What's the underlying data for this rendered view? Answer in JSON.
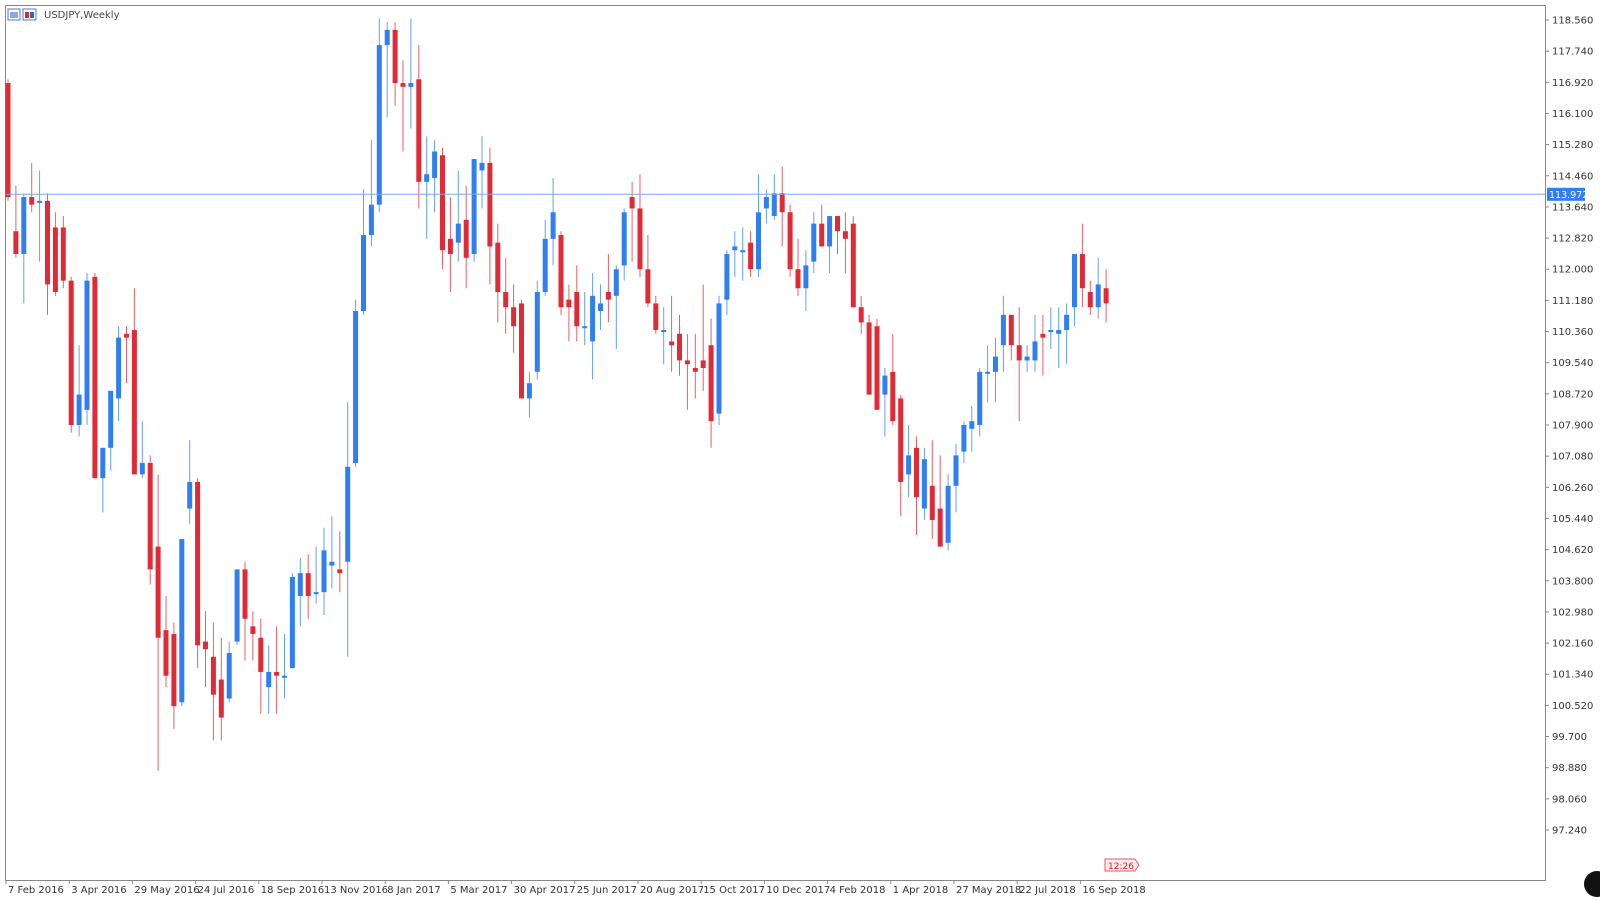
{
  "chart_title": "USDJPY,Weekly",
  "current_price_label": "113.972",
  "timer_label": "12:26",
  "colors": {
    "bull": "#2f7ff0",
    "bear": "#e02a36",
    "grid_frame": "#888888",
    "price_line": "#7ea8ee",
    "price_tag": "#2f7ff0"
  },
  "chart_data": {
    "type": "candlestick",
    "title": "USDJPY,Weekly",
    "xlabel": "",
    "ylabel": "",
    "ylim": [
      96.8,
      118.9
    ],
    "grid": false,
    "last_price": 113.972,
    "y_ticks": [
      "118.560",
      "117.740",
      "116.920",
      "116.100",
      "115.280",
      "114.460",
      "113.640",
      "112.820",
      "112.000",
      "111.180",
      "110.360",
      "109.540",
      "108.720",
      "107.900",
      "107.080",
      "106.260",
      "105.440",
      "104.620",
      "103.800",
      "102.980",
      "102.160",
      "101.340",
      "100.520",
      "99.700",
      "98.880",
      "98.060",
      "97.240"
    ],
    "x_ticks": [
      {
        "label": "7 Feb 2016",
        "index": 0
      },
      {
        "label": "3 Apr 2016",
        "index": 8
      },
      {
        "label": "29 May 2016",
        "index": 16
      },
      {
        "label": "24 Jul 2016",
        "index": 24
      },
      {
        "label": "18 Sep 2016",
        "index": 32
      },
      {
        "label": "13 Nov 2016",
        "index": 40
      },
      {
        "label": "8 Jan 2017",
        "index": 48
      },
      {
        "label": "5 Mar 2017",
        "index": 56
      },
      {
        "label": "30 Apr 2017",
        "index": 64
      },
      {
        "label": "25 Jun 2017",
        "index": 72
      },
      {
        "label": "20 Aug 2017",
        "index": 80
      },
      {
        "label": "15 Oct 2017",
        "index": 88
      },
      {
        "label": "10 Dec 2017",
        "index": 96
      },
      {
        "label": "4 Feb 2018",
        "index": 104
      },
      {
        "label": "1 Apr 2018",
        "index": 112
      },
      {
        "label": "27 May 2018",
        "index": 120
      },
      {
        "label": "22 Jul 2018",
        "index": 128
      },
      {
        "label": "16 Sep 2018",
        "index": 136
      }
    ],
    "candles": [
      {
        "o": 116.9,
        "h": 117.0,
        "l": 113.8,
        "c": 113.9
      },
      {
        "o": 113.0,
        "h": 114.2,
        "l": 112.3,
        "c": 112.4
      },
      {
        "o": 112.4,
        "h": 114.0,
        "l": 111.1,
        "c": 113.9
      },
      {
        "o": 113.9,
        "h": 114.8,
        "l": 113.5,
        "c": 113.7
      },
      {
        "o": 113.8,
        "h": 114.6,
        "l": 112.2,
        "c": 113.8
      },
      {
        "o": 113.8,
        "h": 114.0,
        "l": 110.8,
        "c": 111.6
      },
      {
        "o": 113.1,
        "h": 113.5,
        "l": 111.3,
        "c": 111.4
      },
      {
        "o": 113.1,
        "h": 113.4,
        "l": 111.5,
        "c": 111.7
      },
      {
        "o": 111.7,
        "h": 111.8,
        "l": 107.7,
        "c": 107.9
      },
      {
        "o": 107.9,
        "h": 110.0,
        "l": 107.6,
        "c": 108.7
      },
      {
        "o": 108.3,
        "h": 111.9,
        "l": 107.9,
        "c": 111.7
      },
      {
        "o": 111.8,
        "h": 111.9,
        "l": 106.5,
        "c": 106.5
      },
      {
        "o": 106.5,
        "h": 107.2,
        "l": 105.6,
        "c": 107.3
      },
      {
        "o": 107.3,
        "h": 108.8,
        "l": 106.7,
        "c": 108.8
      },
      {
        "o": 108.6,
        "h": 110.5,
        "l": 108.0,
        "c": 110.2
      },
      {
        "o": 110.3,
        "h": 110.5,
        "l": 109.0,
        "c": 110.2
      },
      {
        "o": 110.4,
        "h": 111.5,
        "l": 106.7,
        "c": 106.6
      },
      {
        "o": 106.6,
        "h": 108.0,
        "l": 106.5,
        "c": 106.9
      },
      {
        "o": 106.9,
        "h": 107.1,
        "l": 103.7,
        "c": 104.1
      },
      {
        "o": 104.7,
        "h": 106.6,
        "l": 98.8,
        "c": 102.3
      },
      {
        "o": 102.5,
        "h": 103.4,
        "l": 101.0,
        "c": 101.3
      },
      {
        "o": 102.4,
        "h": 102.7,
        "l": 99.9,
        "c": 100.5
      },
      {
        "o": 100.6,
        "h": 104.9,
        "l": 100.5,
        "c": 104.9
      },
      {
        "o": 105.7,
        "h": 107.5,
        "l": 105.3,
        "c": 106.4
      },
      {
        "o": 106.4,
        "h": 106.5,
        "l": 101.5,
        "c": 102.1
      },
      {
        "o": 102.2,
        "h": 103.0,
        "l": 101.0,
        "c": 102.0
      },
      {
        "o": 101.8,
        "h": 102.7,
        "l": 99.6,
        "c": 100.8
      },
      {
        "o": 101.2,
        "h": 102.3,
        "l": 99.6,
        "c": 100.2
      },
      {
        "o": 100.7,
        "h": 102.2,
        "l": 100.6,
        "c": 101.9
      },
      {
        "o": 102.2,
        "h": 104.1,
        "l": 102.1,
        "c": 104.1
      },
      {
        "o": 104.1,
        "h": 104.3,
        "l": 101.7,
        "c": 102.8
      },
      {
        "o": 102.6,
        "h": 103.0,
        "l": 101.7,
        "c": 102.4
      },
      {
        "o": 102.3,
        "h": 102.8,
        "l": 100.3,
        "c": 101.4
      },
      {
        "o": 101.0,
        "h": 102.1,
        "l": 100.3,
        "c": 101.4
      },
      {
        "o": 101.4,
        "h": 102.6,
        "l": 100.3,
        "c": 101.3
      },
      {
        "o": 101.3,
        "h": 102.4,
        "l": 100.7,
        "c": 101.3
      },
      {
        "o": 101.5,
        "h": 104.0,
        "l": 101.5,
        "c": 103.9
      },
      {
        "o": 103.4,
        "h": 104.4,
        "l": 102.6,
        "c": 104.0
      },
      {
        "o": 104.0,
        "h": 104.5,
        "l": 102.8,
        "c": 103.4
      },
      {
        "o": 103.5,
        "h": 104.7,
        "l": 103.2,
        "c": 103.5
      },
      {
        "o": 103.5,
        "h": 105.2,
        "l": 102.9,
        "c": 104.6
      },
      {
        "o": 104.2,
        "h": 105.5,
        "l": 103.6,
        "c": 104.3
      },
      {
        "o": 104.1,
        "h": 105.1,
        "l": 103.5,
        "c": 104.0
      },
      {
        "o": 104.3,
        "h": 108.5,
        "l": 101.8,
        "c": 106.8
      },
      {
        "o": 106.9,
        "h": 111.2,
        "l": 106.8,
        "c": 110.9
      },
      {
        "o": 110.9,
        "h": 114.1,
        "l": 110.8,
        "c": 112.9
      },
      {
        "o": 112.9,
        "h": 115.4,
        "l": 112.6,
        "c": 113.7
      },
      {
        "o": 113.7,
        "h": 118.6,
        "l": 113.5,
        "c": 117.9
      },
      {
        "o": 117.9,
        "h": 118.5,
        "l": 116.0,
        "c": 118.3
      },
      {
        "o": 118.3,
        "h": 118.5,
        "l": 116.3,
        "c": 116.9
      },
      {
        "o": 116.9,
        "h": 117.5,
        "l": 115.1,
        "c": 116.8
      },
      {
        "o": 116.8,
        "h": 118.6,
        "l": 115.7,
        "c": 116.9
      },
      {
        "o": 117.0,
        "h": 117.9,
        "l": 113.6,
        "c": 114.3
      },
      {
        "o": 114.3,
        "h": 115.5,
        "l": 112.8,
        "c": 114.5
      },
      {
        "o": 114.4,
        "h": 115.4,
        "l": 113.5,
        "c": 115.1
      },
      {
        "o": 115.0,
        "h": 115.2,
        "l": 112.0,
        "c": 112.5
      },
      {
        "o": 112.8,
        "h": 113.9,
        "l": 111.4,
        "c": 112.4
      },
      {
        "o": 112.7,
        "h": 114.6,
        "l": 112.2,
        "c": 113.2
      },
      {
        "o": 113.3,
        "h": 114.2,
        "l": 111.5,
        "c": 112.3
      },
      {
        "o": 112.4,
        "h": 114.9,
        "l": 112.2,
        "c": 114.9
      },
      {
        "o": 114.6,
        "h": 115.5,
        "l": 113.6,
        "c": 114.8
      },
      {
        "o": 114.8,
        "h": 115.2,
        "l": 111.6,
        "c": 112.6
      },
      {
        "o": 112.7,
        "h": 113.2,
        "l": 110.6,
        "c": 111.4
      },
      {
        "o": 111.4,
        "h": 112.3,
        "l": 110.3,
        "c": 111.0
      },
      {
        "o": 111.0,
        "h": 111.6,
        "l": 109.8,
        "c": 110.5
      },
      {
        "o": 111.1,
        "h": 111.2,
        "l": 108.6,
        "c": 108.6
      },
      {
        "o": 108.6,
        "h": 109.3,
        "l": 108.1,
        "c": 109.0
      },
      {
        "o": 109.3,
        "h": 111.7,
        "l": 109.1,
        "c": 111.4
      },
      {
        "o": 111.4,
        "h": 113.3,
        "l": 111.3,
        "c": 112.8
      },
      {
        "o": 112.8,
        "h": 114.4,
        "l": 112.1,
        "c": 113.5
      },
      {
        "o": 112.9,
        "h": 113.0,
        "l": 110.8,
        "c": 111.0
      },
      {
        "o": 111.2,
        "h": 111.6,
        "l": 110.1,
        "c": 111.0
      },
      {
        "o": 111.4,
        "h": 112.1,
        "l": 110.1,
        "c": 110.5
      },
      {
        "o": 110.5,
        "h": 111.4,
        "l": 110.0,
        "c": 110.5
      },
      {
        "o": 110.1,
        "h": 111.9,
        "l": 109.1,
        "c": 111.3
      },
      {
        "o": 110.9,
        "h": 111.6,
        "l": 110.4,
        "c": 111.1
      },
      {
        "o": 111.4,
        "h": 112.4,
        "l": 110.6,
        "c": 111.2
      },
      {
        "o": 111.3,
        "h": 112.1,
        "l": 109.9,
        "c": 112.0
      },
      {
        "o": 112.1,
        "h": 113.6,
        "l": 111.7,
        "c": 113.5
      },
      {
        "o": 113.9,
        "h": 114.3,
        "l": 112.2,
        "c": 113.6
      },
      {
        "o": 113.6,
        "h": 114.5,
        "l": 111.8,
        "c": 112.0
      },
      {
        "o": 112.0,
        "h": 112.9,
        "l": 111.0,
        "c": 111.1
      },
      {
        "o": 111.1,
        "h": 111.3,
        "l": 110.3,
        "c": 110.4
      },
      {
        "o": 110.4,
        "h": 111.0,
        "l": 109.5,
        "c": 110.4
      },
      {
        "o": 110.1,
        "h": 111.3,
        "l": 109.3,
        "c": 110.0
      },
      {
        "o": 110.3,
        "h": 110.8,
        "l": 109.2,
        "c": 109.6
      },
      {
        "o": 109.6,
        "h": 110.3,
        "l": 108.3,
        "c": 109.5
      },
      {
        "o": 109.4,
        "h": 110.3,
        "l": 108.6,
        "c": 109.3
      },
      {
        "o": 109.6,
        "h": 111.6,
        "l": 108.8,
        "c": 109.4
      },
      {
        "o": 110.0,
        "h": 110.7,
        "l": 107.3,
        "c": 108.0
      },
      {
        "o": 108.2,
        "h": 111.3,
        "l": 107.9,
        "c": 111.1
      },
      {
        "o": 111.2,
        "h": 112.5,
        "l": 110.8,
        "c": 112.4
      },
      {
        "o": 112.5,
        "h": 113.0,
        "l": 111.8,
        "c": 112.6
      },
      {
        "o": 112.5,
        "h": 113.1,
        "l": 111.7,
        "c": 112.5
      },
      {
        "o": 112.7,
        "h": 113.0,
        "l": 111.8,
        "c": 112.0
      },
      {
        "o": 112.0,
        "h": 114.5,
        "l": 111.8,
        "c": 113.5
      },
      {
        "o": 113.6,
        "h": 114.1,
        "l": 113.2,
        "c": 113.9
      },
      {
        "o": 113.4,
        "h": 114.5,
        "l": 113.3,
        "c": 114.0
      },
      {
        "o": 114.0,
        "h": 114.7,
        "l": 112.6,
        "c": 113.5
      },
      {
        "o": 113.5,
        "h": 113.7,
        "l": 111.8,
        "c": 112.0
      },
      {
        "o": 112.0,
        "h": 112.8,
        "l": 111.3,
        "c": 111.5
      },
      {
        "o": 111.5,
        "h": 112.5,
        "l": 110.9,
        "c": 112.1
      },
      {
        "o": 112.2,
        "h": 113.5,
        "l": 111.9,
        "c": 113.2
      },
      {
        "o": 113.2,
        "h": 113.7,
        "l": 112.6,
        "c": 112.6
      },
      {
        "o": 112.6,
        "h": 113.2,
        "l": 111.9,
        "c": 113.4
      },
      {
        "o": 113.4,
        "h": 113.3,
        "l": 112.4,
        "c": 113.0
      },
      {
        "o": 113.0,
        "h": 113.5,
        "l": 111.9,
        "c": 112.8
      },
      {
        "o": 113.2,
        "h": 113.4,
        "l": 111.0,
        "c": 111.0
      },
      {
        "o": 111.0,
        "h": 111.3,
        "l": 110.3,
        "c": 110.6
      },
      {
        "o": 110.6,
        "h": 110.8,
        "l": 108.8,
        "c": 108.7
      },
      {
        "o": 110.5,
        "h": 110.7,
        "l": 108.3,
        "c": 108.3
      },
      {
        "o": 108.7,
        "h": 109.4,
        "l": 107.6,
        "c": 109.2
      },
      {
        "o": 109.3,
        "h": 110.3,
        "l": 107.9,
        "c": 108.0
      },
      {
        "o": 108.6,
        "h": 108.7,
        "l": 105.5,
        "c": 106.4
      },
      {
        "o": 106.6,
        "h": 107.9,
        "l": 106.0,
        "c": 107.1
      },
      {
        "o": 107.3,
        "h": 107.6,
        "l": 105.0,
        "c": 106.0
      },
      {
        "o": 105.7,
        "h": 107.3,
        "l": 105.4,
        "c": 107.0
      },
      {
        "o": 106.3,
        "h": 107.5,
        "l": 104.9,
        "c": 105.4
      },
      {
        "o": 105.7,
        "h": 107.1,
        "l": 104.8,
        "c": 104.7
      },
      {
        "o": 104.8,
        "h": 106.6,
        "l": 104.6,
        "c": 106.3
      },
      {
        "o": 106.3,
        "h": 107.4,
        "l": 105.6,
        "c": 107.1
      },
      {
        "o": 107.2,
        "h": 108.0,
        "l": 106.9,
        "c": 107.9
      },
      {
        "o": 107.8,
        "h": 108.4,
        "l": 107.2,
        "c": 108.0
      },
      {
        "o": 107.9,
        "h": 109.4,
        "l": 107.6,
        "c": 109.3
      },
      {
        "o": 109.3,
        "h": 110.0,
        "l": 108.5,
        "c": 109.3
      },
      {
        "o": 109.3,
        "h": 110.2,
        "l": 108.5,
        "c": 109.7
      },
      {
        "o": 110.0,
        "h": 111.3,
        "l": 109.3,
        "c": 110.8
      },
      {
        "o": 110.8,
        "h": 110.7,
        "l": 109.6,
        "c": 110.0
      },
      {
        "o": 110.0,
        "h": 111.0,
        "l": 108.0,
        "c": 109.6
      },
      {
        "o": 109.6,
        "h": 110.0,
        "l": 109.3,
        "c": 109.7
      },
      {
        "o": 109.6,
        "h": 110.8,
        "l": 109.3,
        "c": 110.1
      },
      {
        "o": 110.3,
        "h": 110.8,
        "l": 109.2,
        "c": 110.2
      },
      {
        "o": 110.4,
        "h": 111.0,
        "l": 109.9,
        "c": 110.4
      },
      {
        "o": 110.3,
        "h": 111.0,
        "l": 109.4,
        "c": 110.4
      },
      {
        "o": 110.4,
        "h": 111.1,
        "l": 109.5,
        "c": 110.8
      },
      {
        "o": 111.0,
        "h": 112.4,
        "l": 110.5,
        "c": 112.4
      },
      {
        "o": 112.4,
        "h": 113.2,
        "l": 111.0,
        "c": 111.5
      },
      {
        "o": 111.4,
        "h": 111.7,
        "l": 110.8,
        "c": 111.0
      },
      {
        "o": 111.0,
        "h": 112.3,
        "l": 110.7,
        "c": 111.6
      },
      {
        "o": 111.5,
        "h": 112.0,
        "l": 110.6,
        "c": 111.1
      }
    ]
  }
}
